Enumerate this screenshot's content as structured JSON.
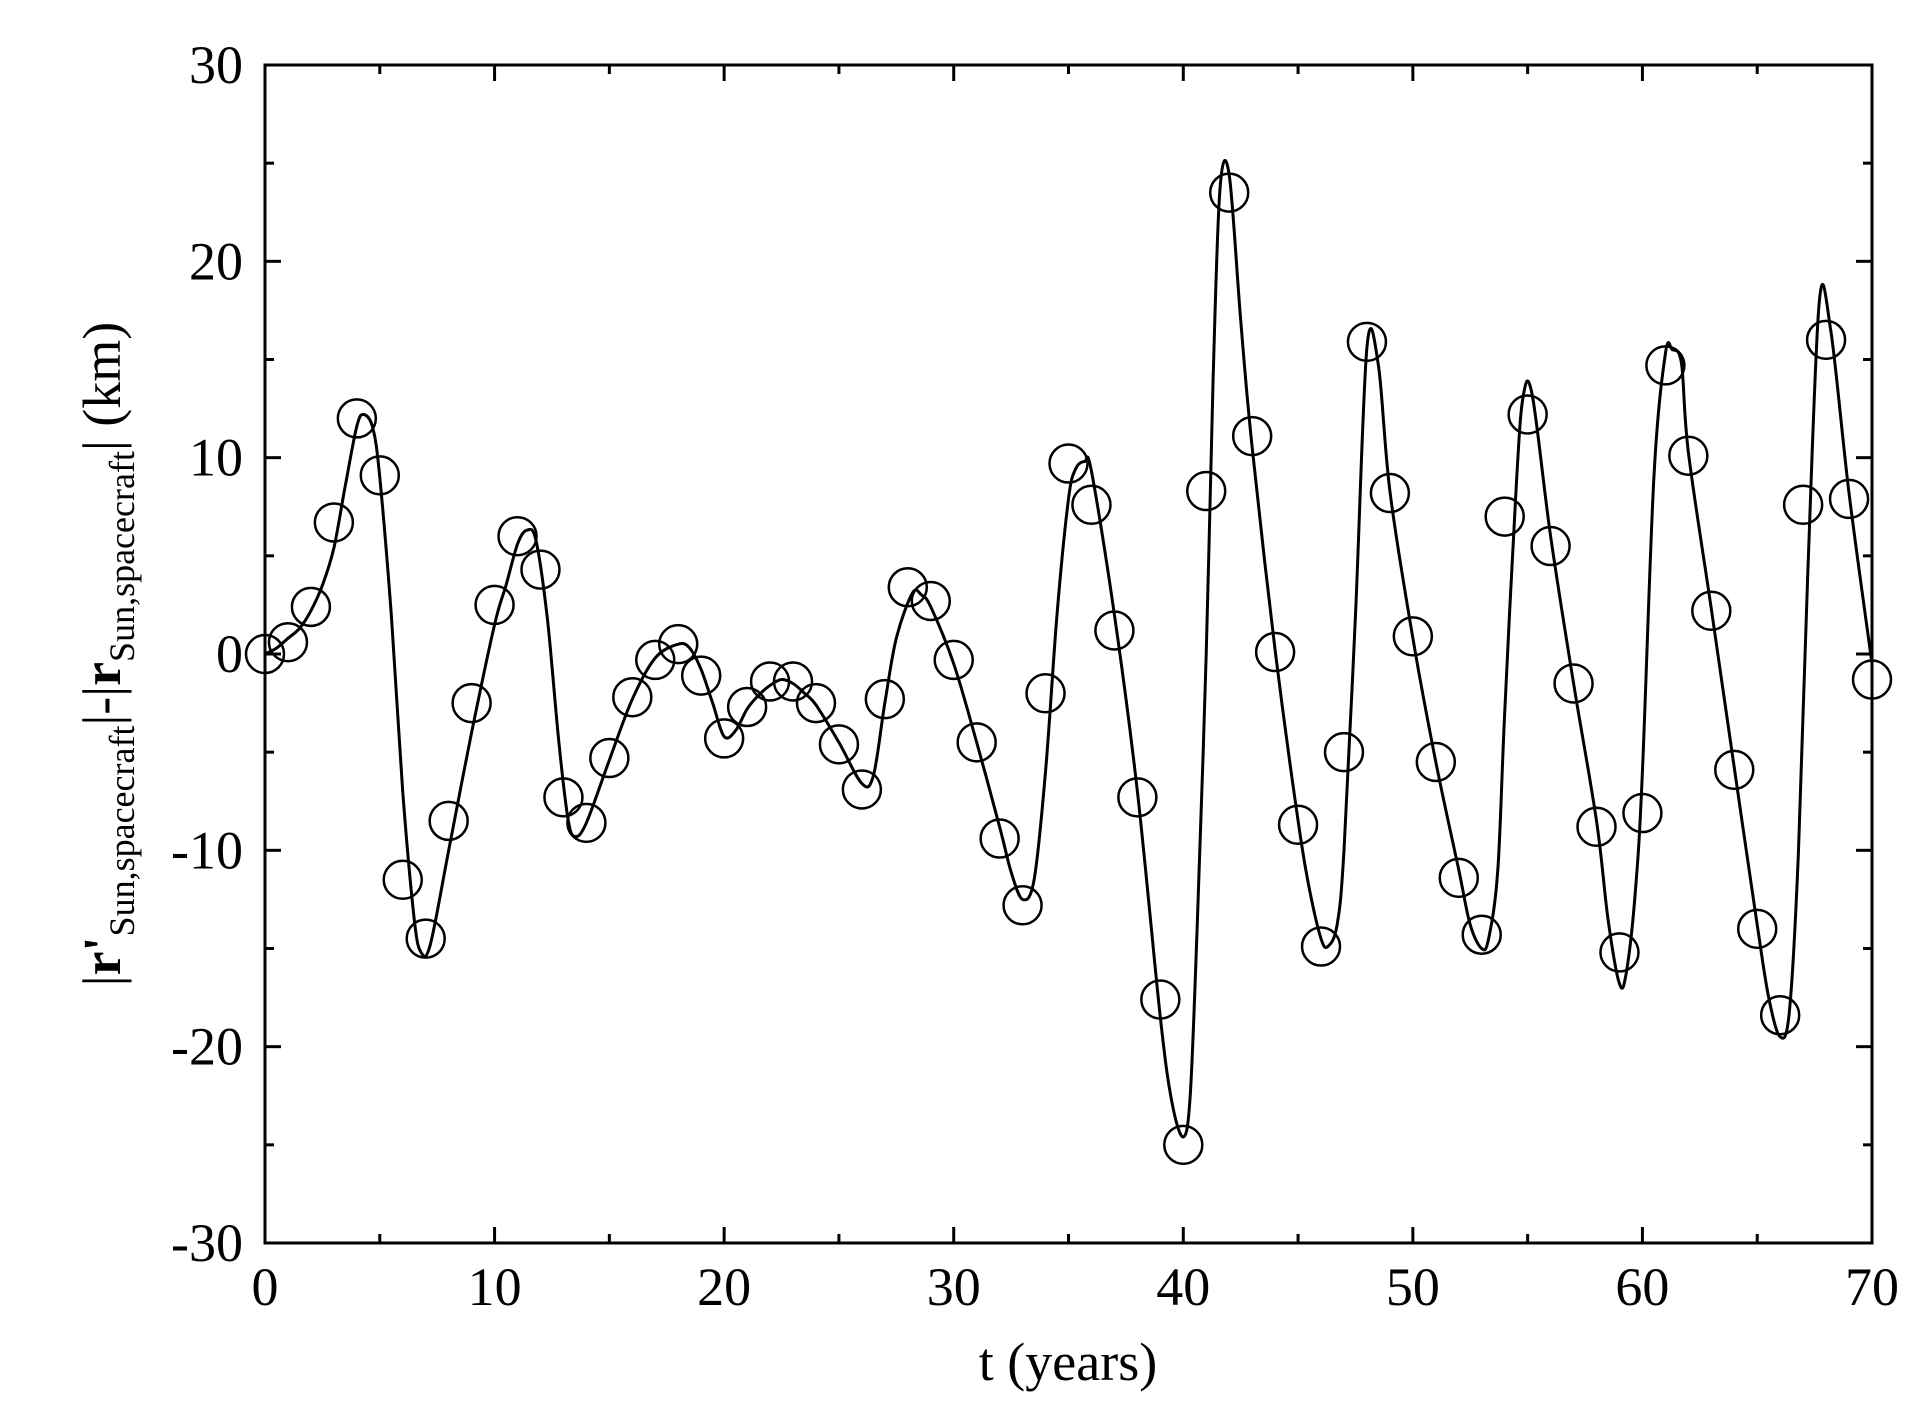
{
  "chart_data": {
    "type": "line",
    "xlabel": "t (years)",
    "ylabel": {
      "bar1": "|",
      "r_prime": "r'",
      "sub1": "Sun,spacecraft",
      "mid": "|-|",
      "r": "r",
      "sub2": "Sun,spacecraft",
      "bar2": "|",
      "unit": " (km)"
    },
    "xlim": [
      0,
      70
    ],
    "ylim": [
      -30,
      30
    ],
    "xticks": [
      0,
      10,
      20,
      30,
      40,
      50,
      60,
      70
    ],
    "yticks": [
      -30,
      -20,
      -10,
      0,
      10,
      20,
      30
    ],
    "x_tick_labels": [
      "0",
      "10",
      "20",
      "30",
      "40",
      "50",
      "60",
      "70"
    ],
    "y_tick_labels": [
      "-30",
      "-20",
      "-10",
      "0",
      "10",
      "20",
      "30"
    ],
    "grid": false,
    "series": [
      {
        "style": "line",
        "color": "#000000",
        "x": [
          0,
          0.5,
          1,
          1.5,
          2,
          2.5,
          3,
          3.5,
          4,
          4.3,
          4.7,
          5,
          5.5,
          6,
          6.5,
          6.8,
          7.2,
          8,
          9,
          10,
          10.5,
          11,
          11.4,
          11.8,
          12.3,
          12.8,
          13.2,
          13.5,
          14,
          15,
          16,
          17,
          18,
          18.5,
          19,
          19.5,
          20,
          20.5,
          21,
          21.5,
          22,
          22.5,
          23,
          23.5,
          24,
          25,
          26,
          26.5,
          27,
          27.5,
          28.2,
          28.6,
          29,
          30,
          31,
          32,
          32.5,
          33,
          33.5,
          34,
          34.5,
          35,
          35.3,
          35.7,
          36,
          37,
          38,
          39,
          39.5,
          40,
          40.3,
          40.6,
          41,
          41.3,
          41.6,
          42,
          42.5,
          43,
          44,
          45,
          45.5,
          46,
          46.3,
          46.7,
          47,
          47.5,
          48,
          48.5,
          49,
          50,
          51,
          52,
          52.5,
          53,
          53.3,
          53.7,
          54,
          54.5,
          54.8,
          55.2,
          56,
          57,
          58,
          58.5,
          59,
          59.3,
          59.7,
          60,
          60.5,
          61,
          61.3,
          61.7,
          62,
          63,
          64,
          65,
          65.5,
          66,
          66.4,
          66.8,
          67.2,
          67.7,
          68.2,
          69,
          70
        ],
        "y": [
          0,
          0.3,
          0.8,
          1.3,
          2.2,
          3.5,
          5.4,
          8.6,
          11.6,
          12.2,
          11.5,
          9,
          2,
          -7,
          -13.5,
          -15.2,
          -14.8,
          -10,
          -4,
          1.5,
          3.5,
          5.6,
          6.3,
          5.8,
          1.8,
          -4.5,
          -8.4,
          -9.3,
          -8.6,
          -5.4,
          -2.3,
          -0.2,
          0.5,
          0.3,
          -0.8,
          -2.5,
          -4.2,
          -3.9,
          -2.8,
          -2.1,
          -1.6,
          -1.3,
          -1.5,
          -2,
          -2.6,
          -4.5,
          -6.6,
          -6.2,
          -2.5,
          0.8,
          3.1,
          3,
          2.4,
          -0.5,
          -4.5,
          -8.8,
          -11.1,
          -12.5,
          -11.5,
          -6,
          2,
          7.9,
          9.4,
          9.8,
          9.3,
          2,
          -7,
          -18.5,
          -22.8,
          -24.6,
          -22.5,
          -14,
          0,
          14,
          23.7,
          24.4,
          17,
          10.5,
          0.2,
          -8.5,
          -12,
          -14.5,
          -14.9,
          -13.8,
          -10,
          2,
          15.6,
          14.7,
          8.3,
          0.8,
          -5.5,
          -11,
          -13.8,
          -15,
          -14.5,
          -11,
          -3,
          8.5,
          13.1,
          13.2,
          6,
          -1.5,
          -8.5,
          -13.5,
          -16.8,
          -16.2,
          -12,
          -6,
          9,
          15.3,
          15.5,
          14.8,
          10.3,
          2.3,
          -5.8,
          -13.8,
          -17.5,
          -19.5,
          -18.2,
          -10,
          4,
          17.9,
          16.5,
          8.2,
          -0.5
        ]
      },
      {
        "style": "marker",
        "marker": "open-circle",
        "x": [
          0,
          1,
          2,
          3,
          4,
          5,
          6,
          7,
          8,
          9,
          10,
          11,
          12,
          13,
          14,
          15,
          16,
          17,
          18,
          19,
          20,
          21,
          22,
          23,
          24,
          25,
          26,
          27,
          28,
          29,
          30,
          31,
          32,
          33,
          34,
          35,
          36,
          37,
          38,
          39,
          40,
          41,
          42,
          43,
          44,
          45,
          46,
          47,
          48,
          49,
          50,
          51,
          52,
          53,
          54,
          55,
          56,
          57,
          58,
          59,
          60,
          61,
          62,
          63,
          64,
          65,
          66,
          67,
          68,
          69,
          70
        ],
        "y": [
          0,
          0.6,
          2.4,
          6.7,
          12,
          9.1,
          -11.5,
          -14.5,
          -8.5,
          -2.5,
          2.5,
          6,
          4.3,
          -7.3,
          -8.6,
          -5.3,
          -2.2,
          -0.3,
          0.5,
          -1.1,
          -4.3,
          -2.7,
          -1.4,
          -1.4,
          -2.5,
          -4.6,
          -6.9,
          -2.3,
          3.4,
          2.7,
          -0.3,
          -4.5,
          -9.4,
          -12.8,
          -2,
          9.7,
          7.6,
          1.2,
          -7.3,
          -17.6,
          -25,
          8.3,
          23.5,
          11.1,
          0.1,
          -8.7,
          -14.9,
          -5,
          15.9,
          8.2,
          0.9,
          -5.5,
          -11.4,
          -14.3,
          7,
          12.2,
          5.5,
          -1.5,
          -8.8,
          -15.2,
          -8.1,
          14.7,
          10.1,
          2.2,
          -5.9,
          -14,
          -18.4,
          7.6,
          16,
          7.9,
          -1.3
        ]
      }
    ]
  }
}
